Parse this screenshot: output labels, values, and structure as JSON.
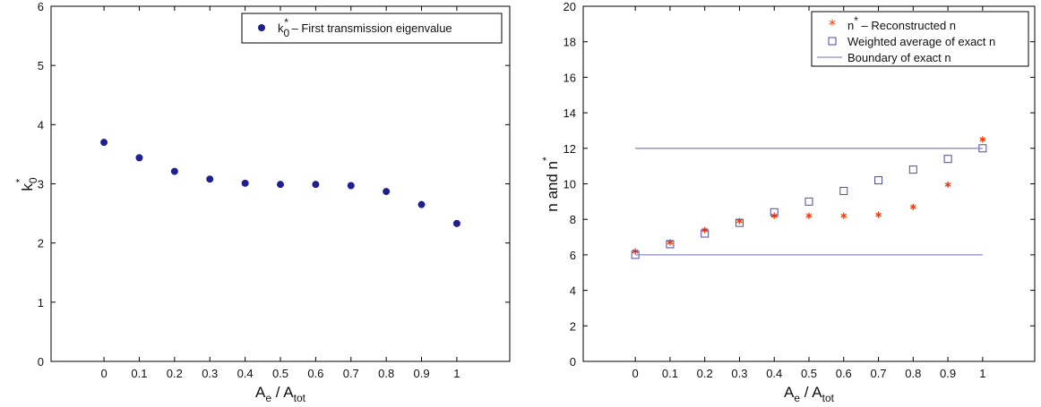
{
  "chart_data": [
    {
      "type": "scatter",
      "xlabel": {
        "main1": "A",
        "sub1": "e",
        "sep": " / ",
        "main2": "A",
        "sub2": "tot"
      },
      "ylabel": {
        "main": "k",
        "sub": "0",
        "sup": "*"
      },
      "xlim": [
        -0.15,
        1.15
      ],
      "ylim": [
        0,
        6
      ],
      "x_ticks": [
        "0",
        "0.1",
        "0.2",
        "0.3",
        "0.4",
        "0.5",
        "0.6",
        "0.7",
        "0.8",
        "0.9",
        "1"
      ],
      "y_ticks": [
        "0",
        "1",
        "2",
        "3",
        "4",
        "5",
        "6"
      ],
      "grid": false,
      "legend_position": "top-right",
      "series": [
        {
          "name": {
            "main": "k",
            "sub": "0",
            "sup": "*",
            "rest": " – First transmission eigenvalue"
          },
          "marker": "filled-circle",
          "color": "#1f1f8f",
          "x": [
            0,
            0.1,
            0.2,
            0.3,
            0.4,
            0.5,
            0.6,
            0.7,
            0.8,
            0.9,
            1
          ],
          "y": [
            3.7,
            3.44,
            3.21,
            3.08,
            3.01,
            2.99,
            2.99,
            2.97,
            2.87,
            2.65,
            2.33
          ]
        }
      ]
    },
    {
      "type": "scatter",
      "xlabel": {
        "main1": "A",
        "sub1": "e",
        "sep": " / ",
        "main2": "A",
        "sub2": "tot"
      },
      "ylabel": {
        "main": "n and n",
        "sup": "*"
      },
      "xlim": [
        -0.15,
        1.15
      ],
      "ylim": [
        0,
        20
      ],
      "x_ticks": [
        "0",
        "0.1",
        "0.2",
        "0.3",
        "0.4",
        "0.5",
        "0.6",
        "0.7",
        "0.8",
        "0.9",
        "1"
      ],
      "y_ticks": [
        "0",
        "2",
        "4",
        "6",
        "8",
        "10",
        "12",
        "14",
        "16",
        "18",
        "20"
      ],
      "grid": false,
      "legend_position": "top-right",
      "series": [
        {
          "name": {
            "main": "n",
            "sup": "*",
            "rest": " – Reconstructed n"
          },
          "marker": "asterisk",
          "color": "#ff3300",
          "x": [
            0,
            0.1,
            0.2,
            0.3,
            0.4,
            0.5,
            0.6,
            0.7,
            0.8,
            0.9,
            1
          ],
          "y": [
            6.2,
            6.7,
            7.4,
            7.9,
            8.2,
            8.2,
            8.2,
            8.25,
            8.7,
            9.95,
            12.5
          ]
        },
        {
          "name": {
            "rest": "Weighted average of exact n"
          },
          "marker": "open-square",
          "color": "#4a4aa8",
          "x": [
            0,
            0.1,
            0.2,
            0.3,
            0.4,
            0.5,
            0.6,
            0.7,
            0.8,
            0.9,
            1
          ],
          "y": [
            6.0,
            6.6,
            7.2,
            7.8,
            8.4,
            9.0,
            9.6,
            10.2,
            10.8,
            11.4,
            12.0
          ]
        },
        {
          "name": {
            "rest": "Boundary of exact n"
          },
          "marker": "line",
          "color": "#8a8ad0",
          "lines": [
            {
              "x": [
                0,
                1
              ],
              "y": [
                12,
                12
              ]
            },
            {
              "x": [
                0,
                1
              ],
              "y": [
                6,
                6
              ]
            }
          ]
        }
      ]
    }
  ]
}
